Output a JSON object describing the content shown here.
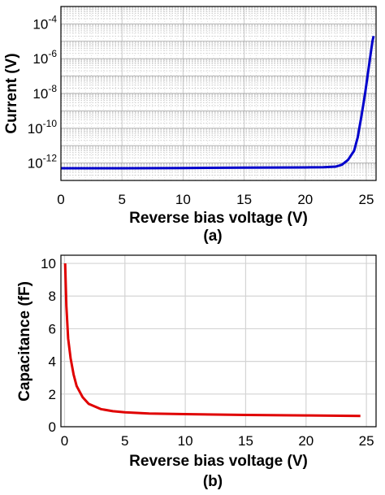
{
  "chart_data": [
    {
      "type": "line",
      "panel_label": "(a)",
      "xlabel": "Reverse bias voltage (V)",
      "ylabel": "Current (V)",
      "yscale": "log",
      "xlim": [
        0,
        25.8
      ],
      "ylim": [
        1e-13,
        0.001
      ],
      "xticks": [
        0,
        5,
        10,
        15,
        20,
        25
      ],
      "xtick_labels": [
        "0",
        "5",
        "10",
        "15",
        "20",
        "25"
      ],
      "yticks": [
        1e-12,
        1e-10,
        1e-08,
        1e-06,
        0.0001
      ],
      "ytick_labels": [
        {
          "base": "10",
          "exp": "-12"
        },
        {
          "base": "10",
          "exp": "-10"
        },
        {
          "base": "10",
          "exp": "-8"
        },
        {
          "base": "10",
          "exp": "-6"
        },
        {
          "base": "10",
          "exp": "-4"
        }
      ],
      "grid": true,
      "series": [
        {
          "color": "#0000cc",
          "x": [
            0,
            5,
            10,
            15,
            20,
            21.5,
            22.5,
            23.0,
            23.5,
            24.0,
            24.3,
            24.6,
            24.9,
            25.1,
            25.3,
            25.5,
            25.6
          ],
          "y": [
            5e-13,
            5e-13,
            5.2e-13,
            5.4e-13,
            5.6e-13,
            5.8e-13,
            6.2e-13,
            8e-13,
            1.5e-12,
            5e-12,
            3e-11,
            5e-10,
            1e-08,
            1e-07,
            1e-06,
            1e-05,
            2e-05
          ]
        }
      ]
    },
    {
      "type": "line",
      "panel_label": "(b)",
      "xlabel": "Reverse bias voltage (V)",
      "ylabel": "Capacitance (fF)",
      "xlim": [
        -0.3,
        25.8
      ],
      "ylim": [
        0,
        10.5
      ],
      "xticks": [
        0,
        5,
        10,
        15,
        20,
        25
      ],
      "xtick_labels": [
        "0",
        "5",
        "10",
        "15",
        "20",
        "25"
      ],
      "yticks": [
        0,
        2,
        4,
        6,
        8,
        10
      ],
      "ytick_labels": [
        "0",
        "2",
        "4",
        "6",
        "8",
        "10"
      ],
      "grid": true,
      "series": [
        {
          "color": "#e00000",
          "x": [
            0.05,
            0.15,
            0.3,
            0.5,
            0.75,
            1.0,
            1.5,
            2.0,
            3.0,
            4.0,
            5.0,
            7.0,
            10.0,
            15.0,
            20.0,
            24.5
          ],
          "y": [
            10.0,
            7.4,
            5.4,
            4.2,
            3.2,
            2.5,
            1.8,
            1.4,
            1.08,
            0.95,
            0.88,
            0.81,
            0.77,
            0.72,
            0.69,
            0.66
          ]
        }
      ]
    }
  ]
}
